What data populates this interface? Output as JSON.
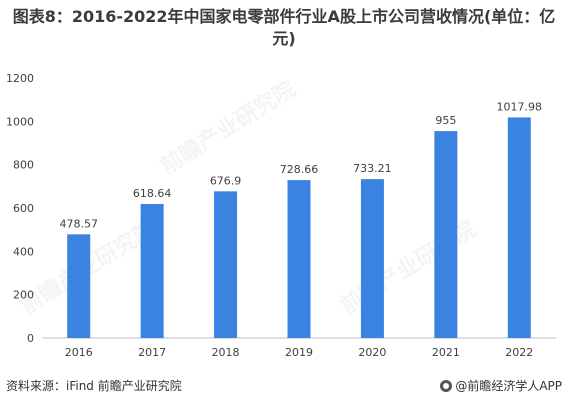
{
  "header": {
    "title": "图表8：2016-2022年中国家电零部件行业A股上市公司营收情况(单位：亿元)"
  },
  "watermark": {
    "text": "前瞻产业研究院"
  },
  "footer": {
    "source": "资料来源：iFind 前瞻产业研究院",
    "brand": "@前瞻经济学人APP"
  },
  "colors": {
    "bar": "#3a83e0",
    "axis": "#bfbfbf",
    "text": "#404040"
  },
  "chart_data": {
    "type": "bar",
    "categories": [
      "2016",
      "2017",
      "2018",
      "2019",
      "2020",
      "2021",
      "2022"
    ],
    "values": [
      478.57,
      618.64,
      676.9,
      728.66,
      733.21,
      955,
      1017.98
    ],
    "value_labels": [
      "478.57",
      "618.64",
      "676.9",
      "728.66",
      "733.21",
      "955",
      "1017.98"
    ],
    "title": "图表8：2016-2022年中国家电零部件行业A股上市公司营收情况(单位：亿元)",
    "xlabel": "",
    "ylabel": "",
    "ylim": [
      0,
      1200
    ],
    "yticks": [
      0,
      200,
      400,
      600,
      800,
      1000,
      1200
    ],
    "grid": false,
    "legend": "none"
  }
}
